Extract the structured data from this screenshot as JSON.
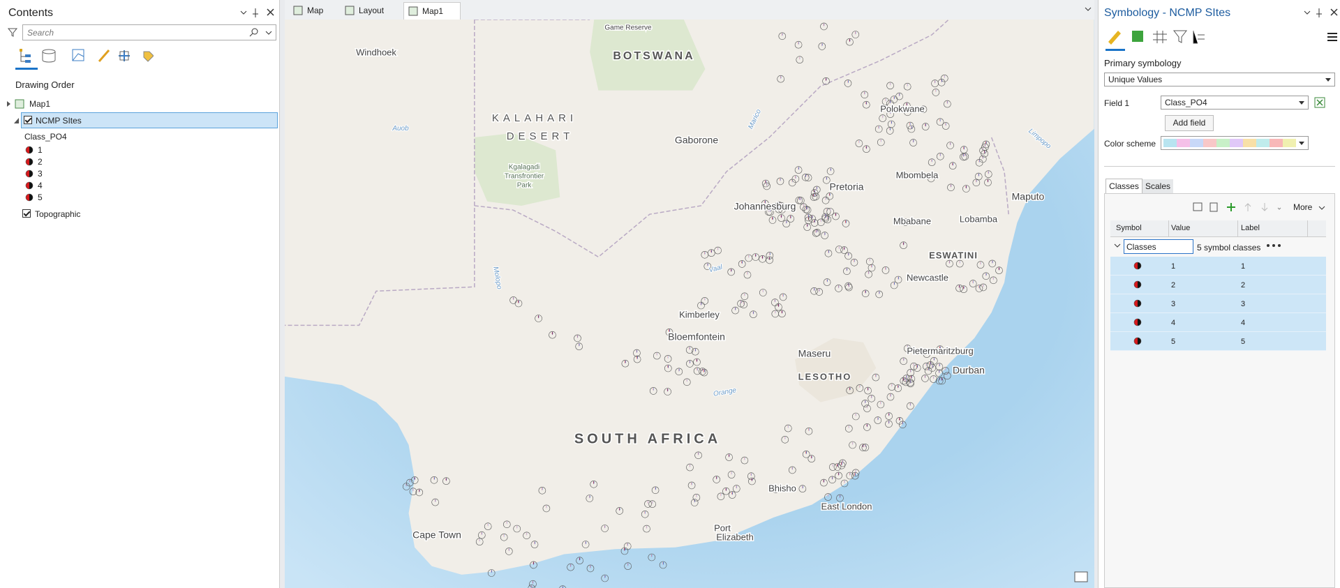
{
  "tabs": [
    "Map",
    "Layout",
    "Map1"
  ],
  "contents": {
    "title": "Contents",
    "search_placeholder": "Search",
    "section": "Drawing Order",
    "map": "Map1",
    "layer": "NCMP SItes",
    "field": "Class_PO4",
    "classes": [
      "1",
      "2",
      "3",
      "4",
      "5"
    ],
    "basemap": "Topographic"
  },
  "map": {
    "labels": [
      "Windhoek",
      "BOTSWANA",
      "Game Reserve",
      "KALAHARI",
      "DESERT",
      "Gaborone",
      "Kgalagadi",
      "Transfrontier",
      "Park",
      "Polokwane",
      "Pretoria",
      "Johannesburg",
      "Mbombela",
      "Maputo",
      "Mbabane",
      "Lobamba",
      "ESWATINI",
      "Newcastle",
      "Kimberley",
      "Bloemfontein",
      "Maseru",
      "LESOTHO",
      "Pietermaritzburg",
      "Durban",
      "SOUTH AFRICA",
      "Bhisho",
      "East London",
      "Port",
      "Elizabeth",
      "Cape Town"
    ],
    "rivers": [
      "Auob",
      "Molopo",
      "Vaal",
      "Orange",
      "Limpopo",
      "Marico"
    ]
  },
  "symbology": {
    "title": "Symbology - NCMP SItes",
    "primary_label": "Primary symbology",
    "renderer": "Unique Values",
    "field_label": "Field 1",
    "field": "Class_PO4",
    "add_field": "Add field",
    "color_scheme_label": "Color scheme",
    "tabs": [
      "Classes",
      "Scales"
    ],
    "more": "More",
    "columns": [
      "Symbol",
      "Value",
      "Label"
    ],
    "group": "Classes",
    "group_count": "5 symbol classes",
    "rows": [
      {
        "value": "1",
        "label": "1"
      },
      {
        "value": "2",
        "label": "2"
      },
      {
        "value": "3",
        "label": "3"
      },
      {
        "value": "4",
        "label": "4"
      },
      {
        "value": "5",
        "label": "5"
      }
    ]
  }
}
